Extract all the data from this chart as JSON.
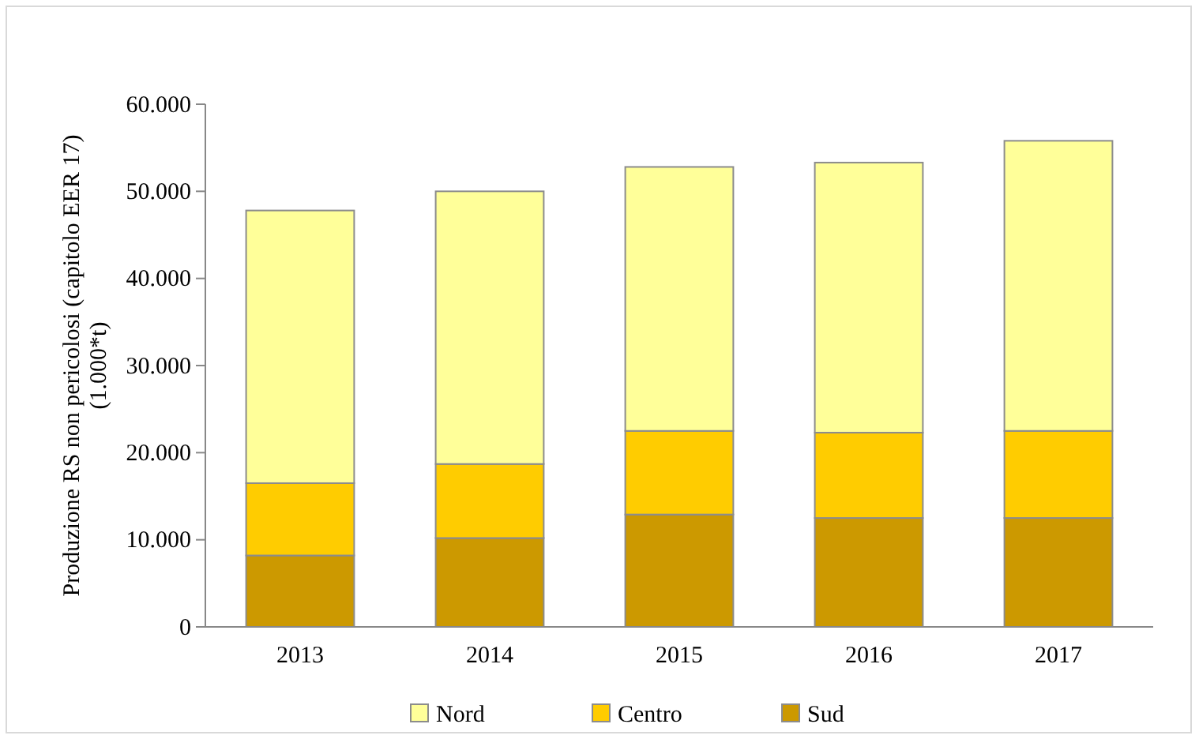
{
  "chart_data": {
    "type": "bar",
    "stacked": true,
    "ylabel": "Produzione RS  non pericolosi (capitolo EER 17)\n(1.000*t)",
    "categories": [
      "2013",
      "2014",
      "2015",
      "2016",
      "2017"
    ],
    "series": [
      {
        "name": "Sud",
        "color": "#cc9900",
        "values": [
          8200,
          10200,
          12900,
          12500,
          12500
        ]
      },
      {
        "name": "Centro",
        "color": "#ffcc00",
        "values": [
          8300,
          8500,
          9600,
          9800,
          10000
        ]
      },
      {
        "name": "Nord",
        "color": "#ffff99",
        "values": [
          31300,
          31300,
          30300,
          31000,
          33300
        ]
      }
    ],
    "ylim": [
      0,
      60000
    ],
    "yticks": [
      {
        "value": 0,
        "label": "0"
      },
      {
        "value": 10000,
        "label": "10.000"
      },
      {
        "value": 20000,
        "label": "20.000"
      },
      {
        "value": 30000,
        "label": "30.000"
      },
      {
        "value": 40000,
        "label": "40.000"
      },
      {
        "value": 50000,
        "label": "50.000"
      },
      {
        "value": 60000,
        "label": "60.000"
      }
    ],
    "grid": false,
    "legend": "bottom"
  }
}
